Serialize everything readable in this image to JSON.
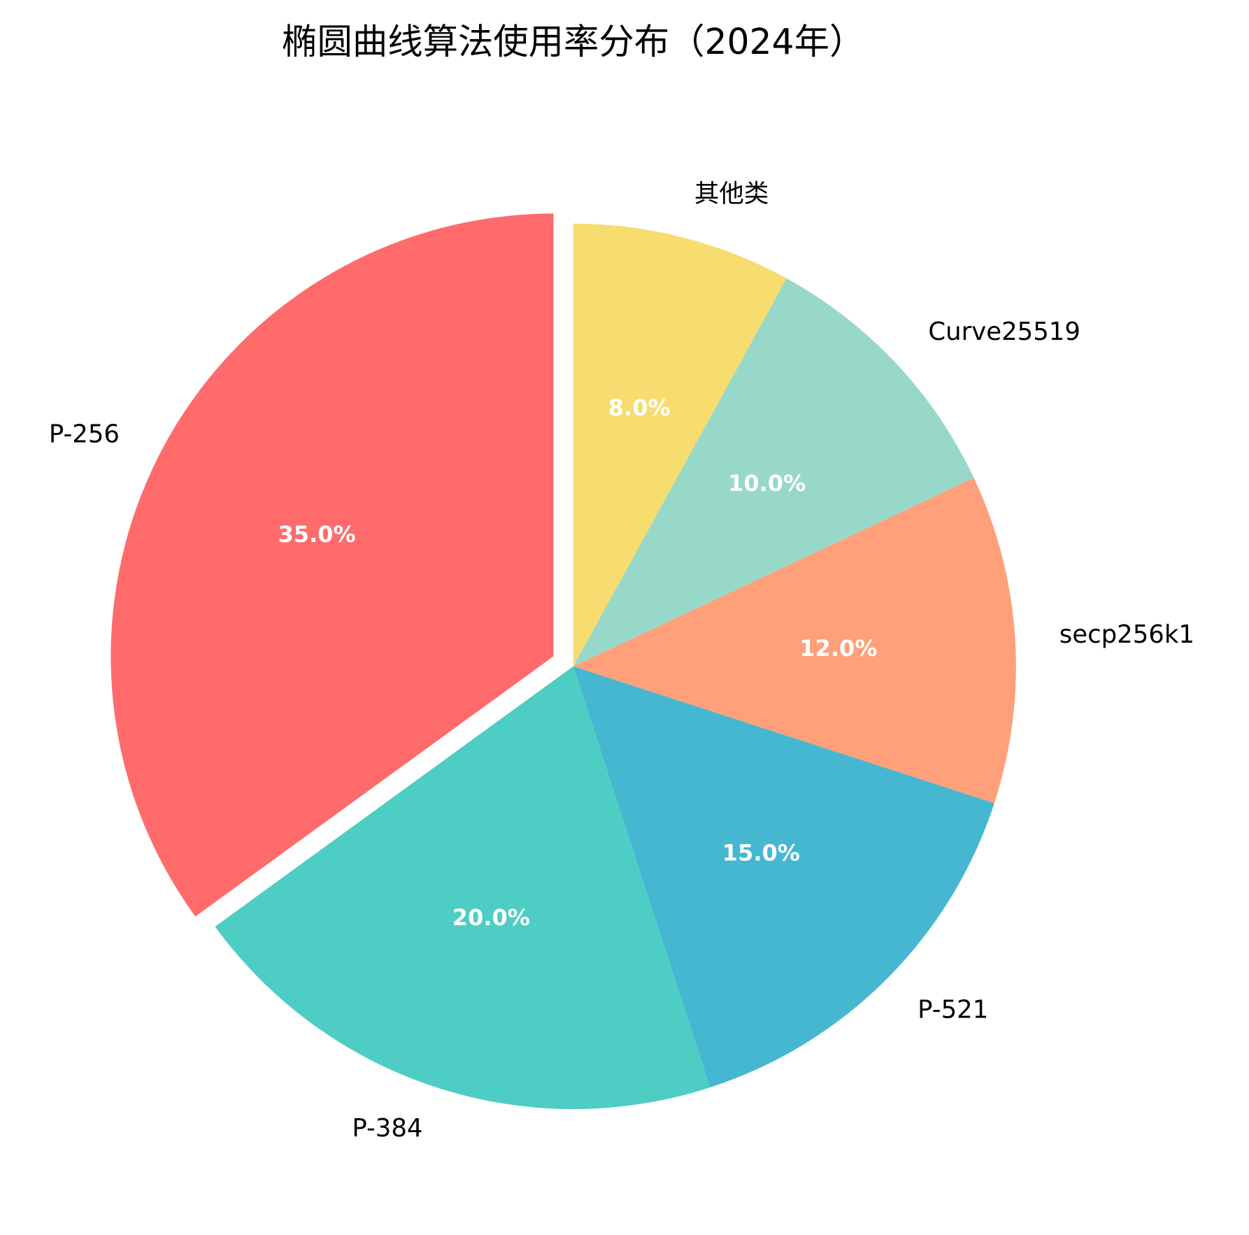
{
  "chart_data": {
    "type": "pie",
    "title": "椭圆曲线算法使用率分布（2024年）",
    "categories": [
      "P-256",
      "P-384",
      "P-521",
      "secp256k1",
      "Curve25519",
      "其他类"
    ],
    "values": [
      35,
      20,
      15,
      12,
      10,
      8
    ],
    "value_labels": [
      "35.0%",
      "20.0%",
      "15.0%",
      "12.0%",
      "10.0%",
      "8.0%"
    ],
    "colors": [
      "#FF6B6B",
      "#4ECDC4",
      "#45B7D1",
      "#FFA07A",
      "#98D8C8",
      "#F7DC6F"
    ],
    "explode": [
      0.05,
      0,
      0,
      0,
      0,
      0
    ],
    "start_angle": 90,
    "counterclock": true
  }
}
